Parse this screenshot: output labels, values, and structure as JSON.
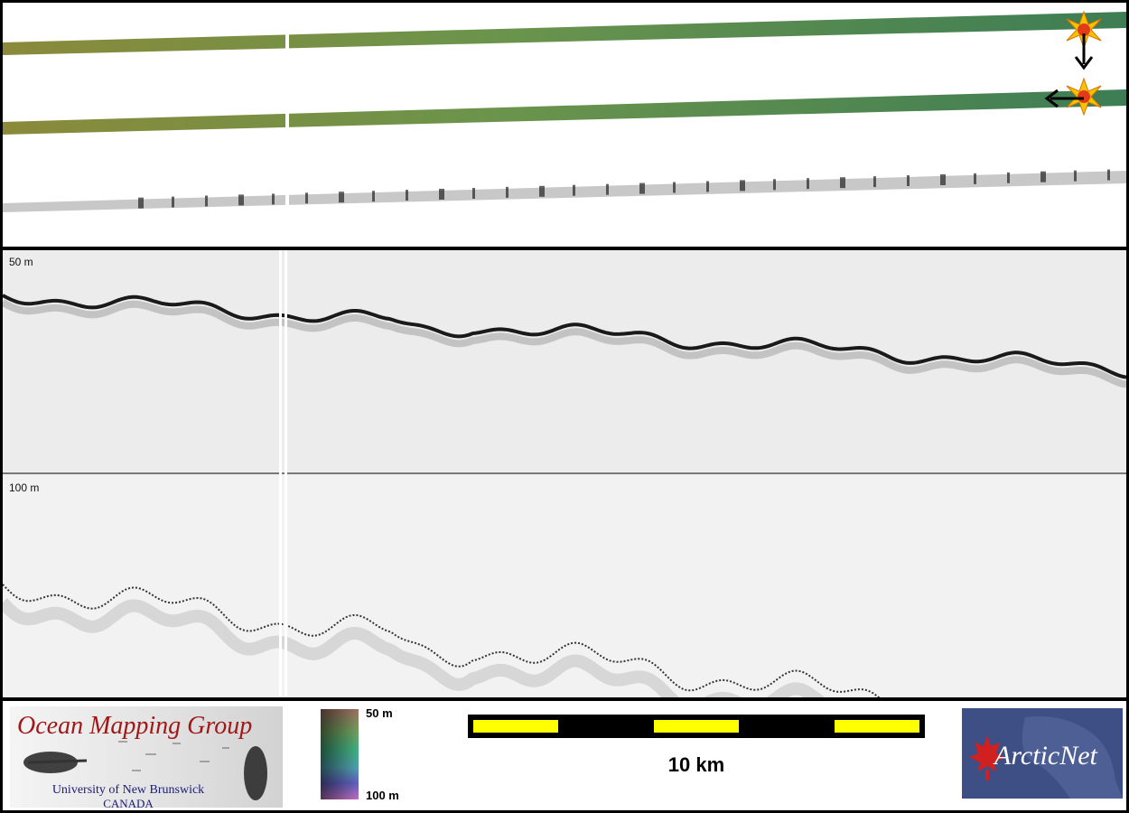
{
  "profile": {
    "label_top": "50 m",
    "label_bottom": "100 m"
  },
  "map": {
    "track_colors": [
      "#8a8a3a",
      "#5f8f4a",
      "#3d7d55"
    ],
    "markers": [
      "sun-icon",
      "sun-icon"
    ],
    "arrows": [
      "arrow-down-icon",
      "arrow-left-icon"
    ]
  },
  "legend": {
    "logo_title": "Ocean Mapping Group",
    "logo_university": "University of New Brunswick",
    "logo_country": "CANADA",
    "colorbar_top": "50 m",
    "colorbar_bottom": "100 m",
    "scalebar_label": "10 km",
    "scalebar_colors": [
      "#000000",
      "#ffff00"
    ],
    "partner_logo": "ArcticNet"
  }
}
